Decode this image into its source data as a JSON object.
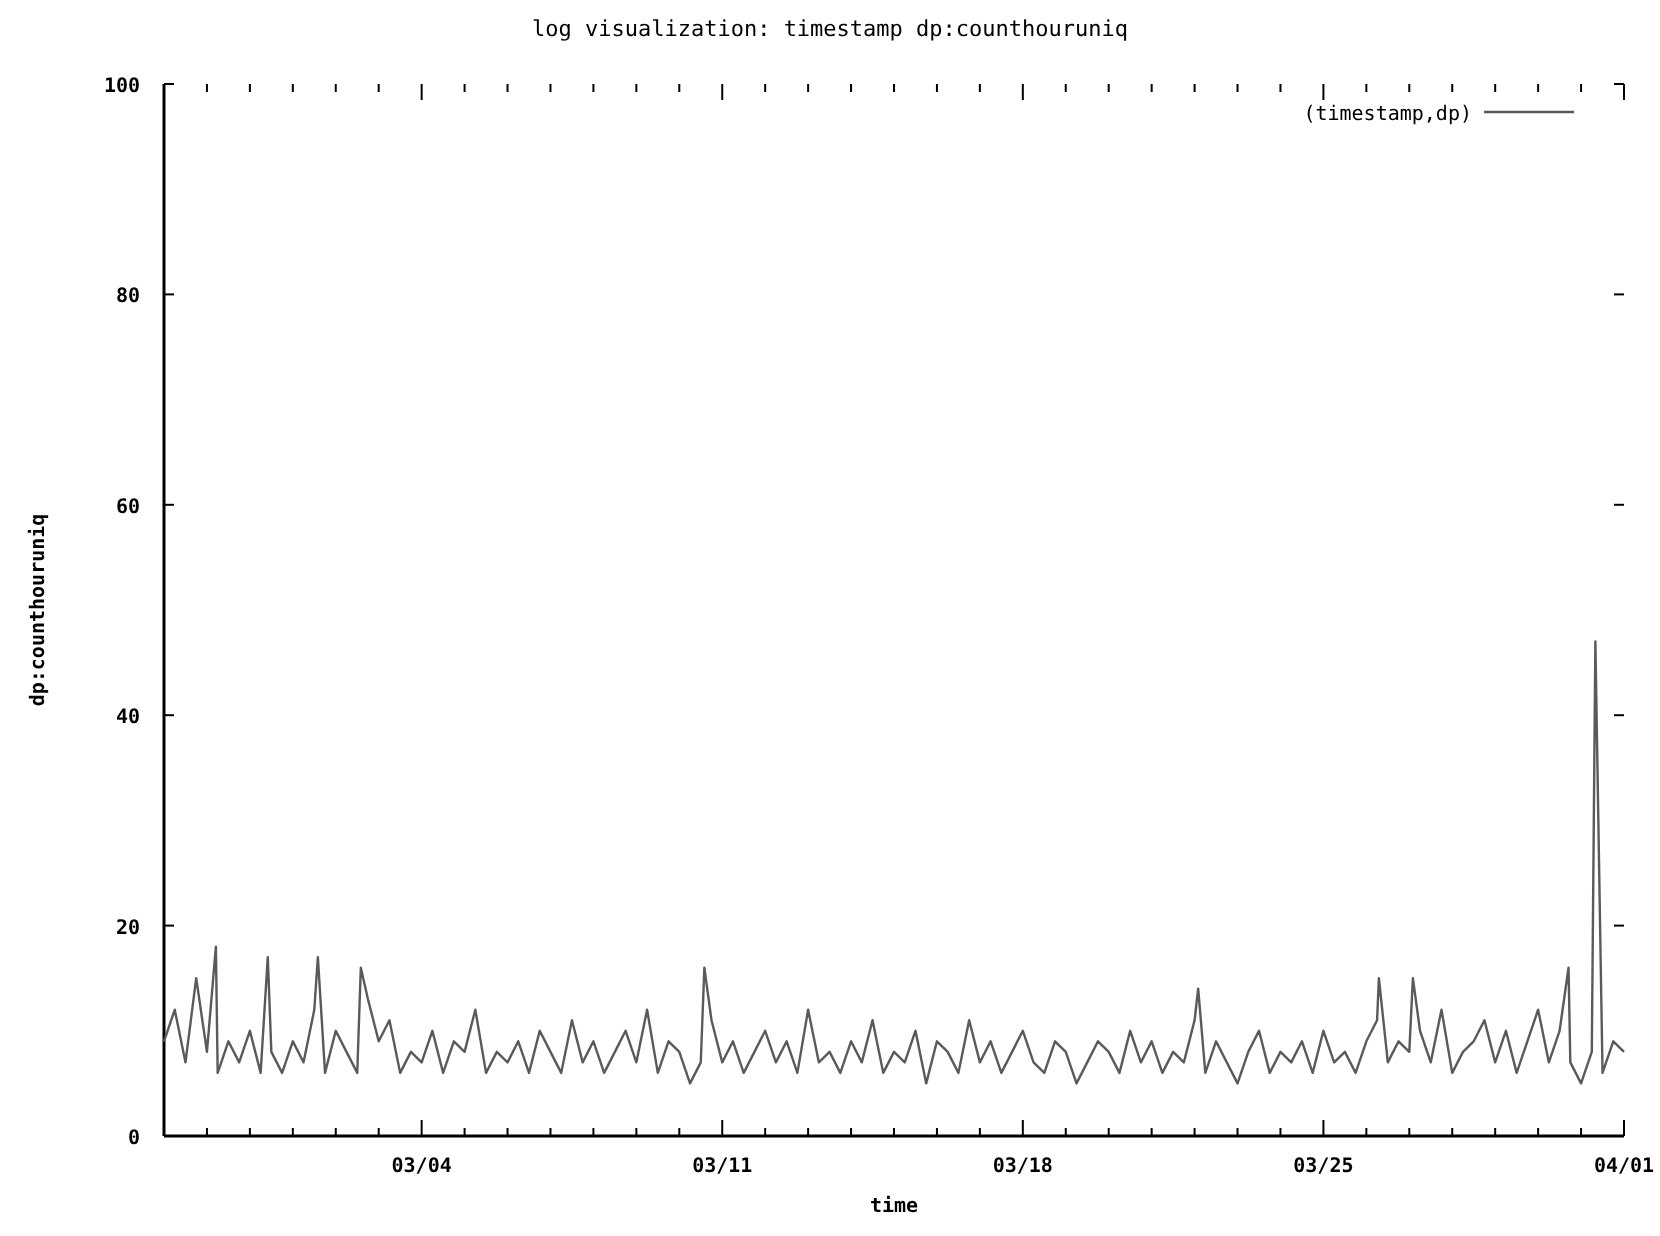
{
  "chart_data": {
    "type": "line",
    "title": "log visualization: timestamp dp:counthouruniq",
    "xlabel": "time",
    "ylabel": "dp:counthouruniq",
    "xlim": [
      "--02-26",
      "--04-01"
    ],
    "ylim": [
      0,
      100
    ],
    "yticks": [
      0,
      20,
      40,
      60,
      80,
      100
    ],
    "xticks": [
      {
        "value": "--02-27",
        "label": null
      },
      {
        "value": "--02-28",
        "label": null
      },
      {
        "value": "--03-01",
        "label": null
      },
      {
        "value": "--03-02",
        "label": null
      },
      {
        "value": "--03-03",
        "label": null
      },
      {
        "value": "--03-04",
        "label": "03/04"
      },
      {
        "value": "--03-05",
        "label": null
      },
      {
        "value": "--03-06",
        "label": null
      },
      {
        "value": "--03-07",
        "label": null
      },
      {
        "value": "--03-08",
        "label": null
      },
      {
        "value": "--03-09",
        "label": null
      },
      {
        "value": "--03-10",
        "label": null
      },
      {
        "value": "--03-11",
        "label": "03/11"
      },
      {
        "value": "--03-12",
        "label": null
      },
      {
        "value": "--03-13",
        "label": null
      },
      {
        "value": "--03-14",
        "label": null
      },
      {
        "value": "--03-15",
        "label": null
      },
      {
        "value": "--03-16",
        "label": null
      },
      {
        "value": "--03-17",
        "label": null
      },
      {
        "value": "--03-18",
        "label": "03/18"
      },
      {
        "value": "--03-19",
        "label": null
      },
      {
        "value": "--03-20",
        "label": null
      },
      {
        "value": "--03-21",
        "label": null
      },
      {
        "value": "--03-22",
        "label": null
      },
      {
        "value": "--03-23",
        "label": null
      },
      {
        "value": "--03-24",
        "label": null
      },
      {
        "value": "--03-25",
        "label": "03/25"
      },
      {
        "value": "--03-26",
        "label": null
      },
      {
        "value": "--03-27",
        "label": null
      },
      {
        "value": "--03-28",
        "label": null
      },
      {
        "value": "--03-29",
        "label": null
      },
      {
        "value": "--03-30",
        "label": null
      },
      {
        "value": "--03-31",
        "label": null
      },
      {
        "value": "--04-01",
        "label": "04/01"
      }
    ],
    "legend": "top right",
    "grid": false,
    "line_style": "solid",
    "series": [
      {
        "name": "(timestamp,dp)",
        "color": "#5a5a5a",
        "x": [
          "--02-26T00:00",
          "--02-26T06:00",
          "--02-26T12:00",
          "--02-26T18:00",
          "--02-27T00:00",
          "--02-27T05:00",
          "--02-27T06:00",
          "--02-27T12:00",
          "--02-27T18:00",
          "--02-28T00:00",
          "--02-28T06:00",
          "--02-28T10:00",
          "--02-28T12:00",
          "--02-28T18:00",
          "--03-01T00:00",
          "--03-01T06:00",
          "--03-01T12:00",
          "--03-01T14:00",
          "--03-01T18:00",
          "--03-02T00:00",
          "--03-02T06:00",
          "--03-02T12:00",
          "--03-02T14:00",
          "--03-02T18:00",
          "--03-03T00:00",
          "--03-03T06:00",
          "--03-03T12:00",
          "--03-03T18:00",
          "--03-04T00:00",
          "--03-04T06:00",
          "--03-04T12:00",
          "--03-04T18:00",
          "--03-05T00:00",
          "--03-05T06:00",
          "--03-05T12:00",
          "--03-05T18:00",
          "--03-06T00:00",
          "--03-06T06:00",
          "--03-06T12:00",
          "--03-06T18:00",
          "--03-07T00:00",
          "--03-07T06:00",
          "--03-07T12:00",
          "--03-07T18:00",
          "--03-08T00:00",
          "--03-08T06:00",
          "--03-08T12:00",
          "--03-08T18:00",
          "--03-09T00:00",
          "--03-09T06:00",
          "--03-09T12:00",
          "--03-09T18:00",
          "--03-10T00:00",
          "--03-10T06:00",
          "--03-10T12:00",
          "--03-10T14:00",
          "--03-10T18:00",
          "--03-11T00:00",
          "--03-11T06:00",
          "--03-11T12:00",
          "--03-11T18:00",
          "--03-12T00:00",
          "--03-12T06:00",
          "--03-12T12:00",
          "--03-12T18:00",
          "--03-13T00:00",
          "--03-13T06:00",
          "--03-13T12:00",
          "--03-13T18:00",
          "--03-14T00:00",
          "--03-14T06:00",
          "--03-14T12:00",
          "--03-14T18:00",
          "--03-15T00:00",
          "--03-15T06:00",
          "--03-15T12:00",
          "--03-15T18:00",
          "--03-16T00:00",
          "--03-16T06:00",
          "--03-16T12:00",
          "--03-16T18:00",
          "--03-17T00:00",
          "--03-17T06:00",
          "--03-17T12:00",
          "--03-17T18:00",
          "--03-18T00:00",
          "--03-18T06:00",
          "--03-18T12:00",
          "--03-18T18:00",
          "--03-19T00:00",
          "--03-19T06:00",
          "--03-19T12:00",
          "--03-19T18:00",
          "--03-20T00:00",
          "--03-20T06:00",
          "--03-20T12:00",
          "--03-20T18:00",
          "--03-21T00:00",
          "--03-21T06:00",
          "--03-21T12:00",
          "--03-21T18:00",
          "--03-22T00:00",
          "--03-22T02:00",
          "--03-22T06:00",
          "--03-22T12:00",
          "--03-22T18:00",
          "--03-23T00:00",
          "--03-23T06:00",
          "--03-23T12:00",
          "--03-23T18:00",
          "--03-24T00:00",
          "--03-24T06:00",
          "--03-24T12:00",
          "--03-24T18:00",
          "--03-25T00:00",
          "--03-25T06:00",
          "--03-25T12:00",
          "--03-25T18:00",
          "--03-26T00:00",
          "--03-26T06:00",
          "--03-26T07:00",
          "--03-26T12:00",
          "--03-26T18:00",
          "--03-27T00:00",
          "--03-27T02:00",
          "--03-27T06:00",
          "--03-27T12:00",
          "--03-27T18:00",
          "--03-28T00:00",
          "--03-28T06:00",
          "--03-28T12:00",
          "--03-28T18:00",
          "--03-29T00:00",
          "--03-29T06:00",
          "--03-29T12:00",
          "--03-29T18:00",
          "--03-30T00:00",
          "--03-30T06:00",
          "--03-30T12:00",
          "--03-30T17:00",
          "--03-30T18:00",
          "--03-31T00:00",
          "--03-31T06:00",
          "--03-31T08:00",
          "--03-31T12:00",
          "--03-31T18:00",
          "--04-01T00:00"
        ],
        "values": [
          9,
          12,
          7,
          15,
          8,
          18,
          6,
          9,
          7,
          10,
          6,
          17,
          8,
          6,
          9,
          7,
          12,
          17,
          6,
          10,
          8,
          6,
          16,
          13,
          9,
          11,
          6,
          8,
          7,
          10,
          6,
          9,
          8,
          12,
          6,
          8,
          7,
          9,
          6,
          10,
          8,
          6,
          11,
          7,
          9,
          6,
          8,
          10,
          7,
          12,
          6,
          9,
          8,
          5,
          7,
          16,
          11,
          7,
          9,
          6,
          8,
          10,
          7,
          9,
          6,
          12,
          7,
          8,
          6,
          9,
          7,
          11,
          6,
          8,
          7,
          10,
          5,
          9,
          8,
          6,
          11,
          7,
          9,
          6,
          8,
          10,
          7,
          6,
          9,
          8,
          5,
          7,
          9,
          8,
          6,
          10,
          7,
          9,
          6,
          8,
          7,
          11,
          14,
          6,
          9,
          7,
          5,
          8,
          10,
          6,
          8,
          7,
          9,
          6,
          10,
          7,
          8,
          6,
          9,
          11,
          15,
          7,
          9,
          8,
          15,
          10,
          7,
          12,
          6,
          8,
          9,
          11,
          7,
          10,
          6,
          9,
          12,
          7,
          10,
          16,
          7,
          5,
          8,
          47,
          6,
          9,
          8
        ]
      }
    ]
  }
}
